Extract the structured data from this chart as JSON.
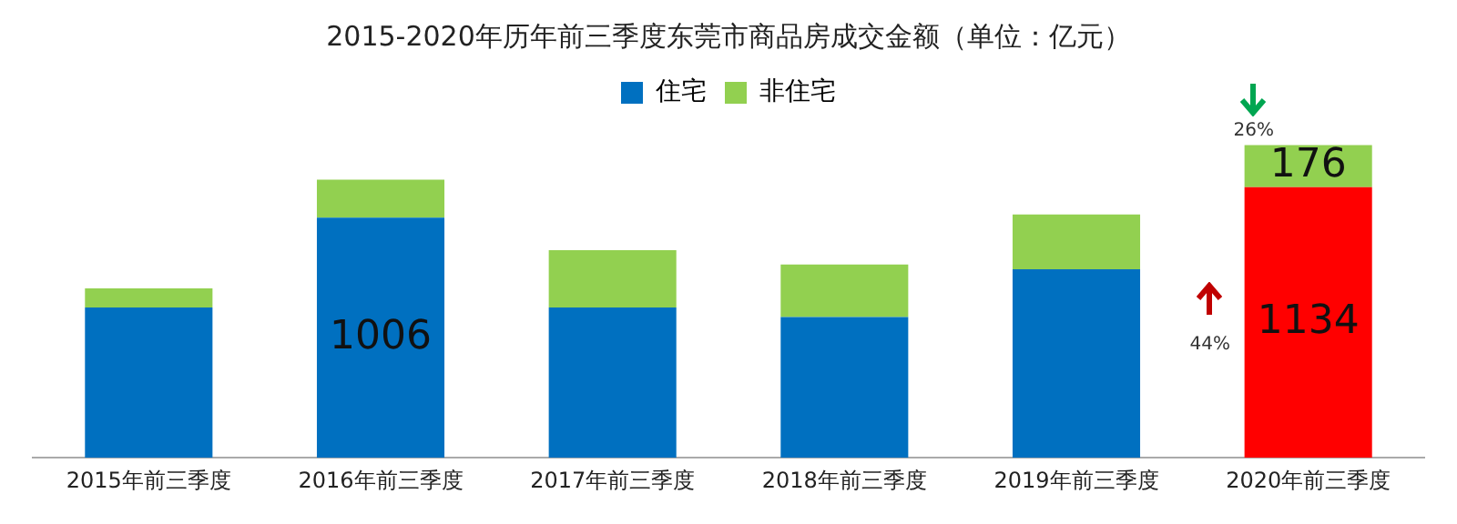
{
  "chart_data": {
    "type": "bar",
    "stacked": true,
    "title": "2015-2020年历年前三季度东莞市商品房成交金额（单位：亿元）",
    "categories": [
      "2015年前三季度",
      "2016年前三季度",
      "2017年前三季度",
      "2018年前三季度",
      "2019年前三季度",
      "2020年前三季度"
    ],
    "series": [
      {
        "name": "住宅",
        "color": "#0070c0",
        "colors": [
          "#0070c0",
          "#0070c0",
          "#0070c0",
          "#0070c0",
          "#0070c0",
          "#ff0000"
        ],
        "values": [
          630,
          1006,
          630,
          590,
          790,
          1134
        ],
        "value_labels": [
          null,
          "1006",
          null,
          null,
          null,
          "1134"
        ]
      },
      {
        "name": "非住宅",
        "color": "#92d050",
        "values": [
          80,
          160,
          240,
          220,
          230,
          176
        ],
        "value_labels": [
          null,
          null,
          null,
          null,
          null,
          "176"
        ]
      }
    ],
    "annotations": [
      "26%",
      "44%"
    ],
    "legend": "top",
    "grid": false
  }
}
